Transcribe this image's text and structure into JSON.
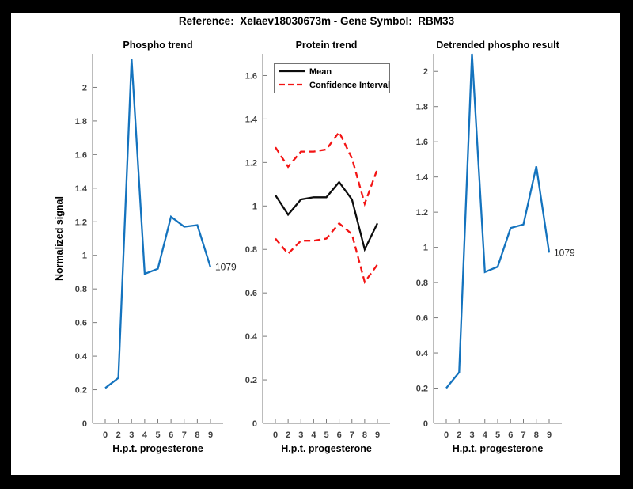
{
  "header": {
    "title": "Reference:  Xelaev18030673m - Gene Symbol:  RBM33"
  },
  "colors": {
    "blue": "#1473be",
    "red": "#f31414",
    "black": "#0d0d0d",
    "axis": "#7a7a7a",
    "tick_label": "#404040",
    "annotation": "#262626",
    "legend_border": "#737373",
    "background": "#ffffff",
    "frame": "#000000"
  },
  "chart_data": [
    {
      "type": "line",
      "title": "Phospho trend",
      "xlabel": "H.p.t. progesterone",
      "ylabel": "Normalized signal",
      "x_tick_labels": [
        "0",
        "2",
        "3",
        "4",
        "5",
        "6",
        "7",
        "8",
        "9"
      ],
      "ylim": [
        0,
        2.2
      ],
      "yticks": [
        0,
        0.2,
        0.4,
        0.6,
        0.8,
        1,
        1.2,
        1.4,
        1.6,
        1.8,
        2
      ],
      "grid": false,
      "legend": null,
      "end_label": "1079",
      "series": [
        {
          "name": "phospho-signal",
          "color": "blue",
          "dash": false,
          "values": [
            0.21,
            0.27,
            2.17,
            0.89,
            0.92,
            1.23,
            1.17,
            1.18,
            0.93
          ]
        }
      ]
    },
    {
      "type": "line",
      "title": "Protein trend",
      "xlabel": "H.p.t. progesterone",
      "ylabel": "",
      "x_tick_labels": [
        "0",
        "2",
        "3",
        "4",
        "5",
        "6",
        "7",
        "8",
        "9"
      ],
      "ylim": [
        0,
        1.7
      ],
      "yticks": [
        0,
        0.2,
        0.4,
        0.6,
        0.8,
        1,
        1.2,
        1.4,
        1.6
      ],
      "grid": false,
      "legend": {
        "position": "top-left",
        "entries": [
          {
            "label": "Mean",
            "color": "black",
            "dash": false
          },
          {
            "label": "Confidence Interval",
            "color": "red",
            "dash": true
          }
        ]
      },
      "end_label": null,
      "series": [
        {
          "name": "mean",
          "color": "black",
          "dash": false,
          "values": [
            1.05,
            0.96,
            1.03,
            1.04,
            1.04,
            1.11,
            1.03,
            0.8,
            0.92
          ]
        },
        {
          "name": "confidence-interval-upper",
          "color": "red",
          "dash": true,
          "values": [
            1.27,
            1.18,
            1.25,
            1.25,
            1.26,
            1.34,
            1.22,
            1.01,
            1.17
          ]
        },
        {
          "name": "confidence-interval-lower",
          "color": "red",
          "dash": true,
          "values": [
            0.85,
            0.78,
            0.84,
            0.84,
            0.85,
            0.92,
            0.87,
            0.65,
            0.73
          ]
        }
      ]
    },
    {
      "type": "line",
      "title": "Detrended phospho result",
      "xlabel": "H.p.t. progesterone",
      "ylabel": "",
      "x_tick_labels": [
        "0",
        "2",
        "3",
        "4",
        "5",
        "6",
        "7",
        "8",
        "9"
      ],
      "ylim": [
        0,
        2.1
      ],
      "yticks": [
        0,
        0.2,
        0.4,
        0.6,
        0.8,
        1,
        1.2,
        1.4,
        1.6,
        1.8,
        2
      ],
      "grid": false,
      "legend": null,
      "end_label": "1079",
      "series": [
        {
          "name": "detrended-phospho-signal",
          "color": "blue",
          "dash": false,
          "values": [
            0.2,
            0.29,
            2.1,
            0.86,
            0.89,
            1.11,
            1.13,
            1.46,
            0.97
          ]
        }
      ]
    }
  ]
}
